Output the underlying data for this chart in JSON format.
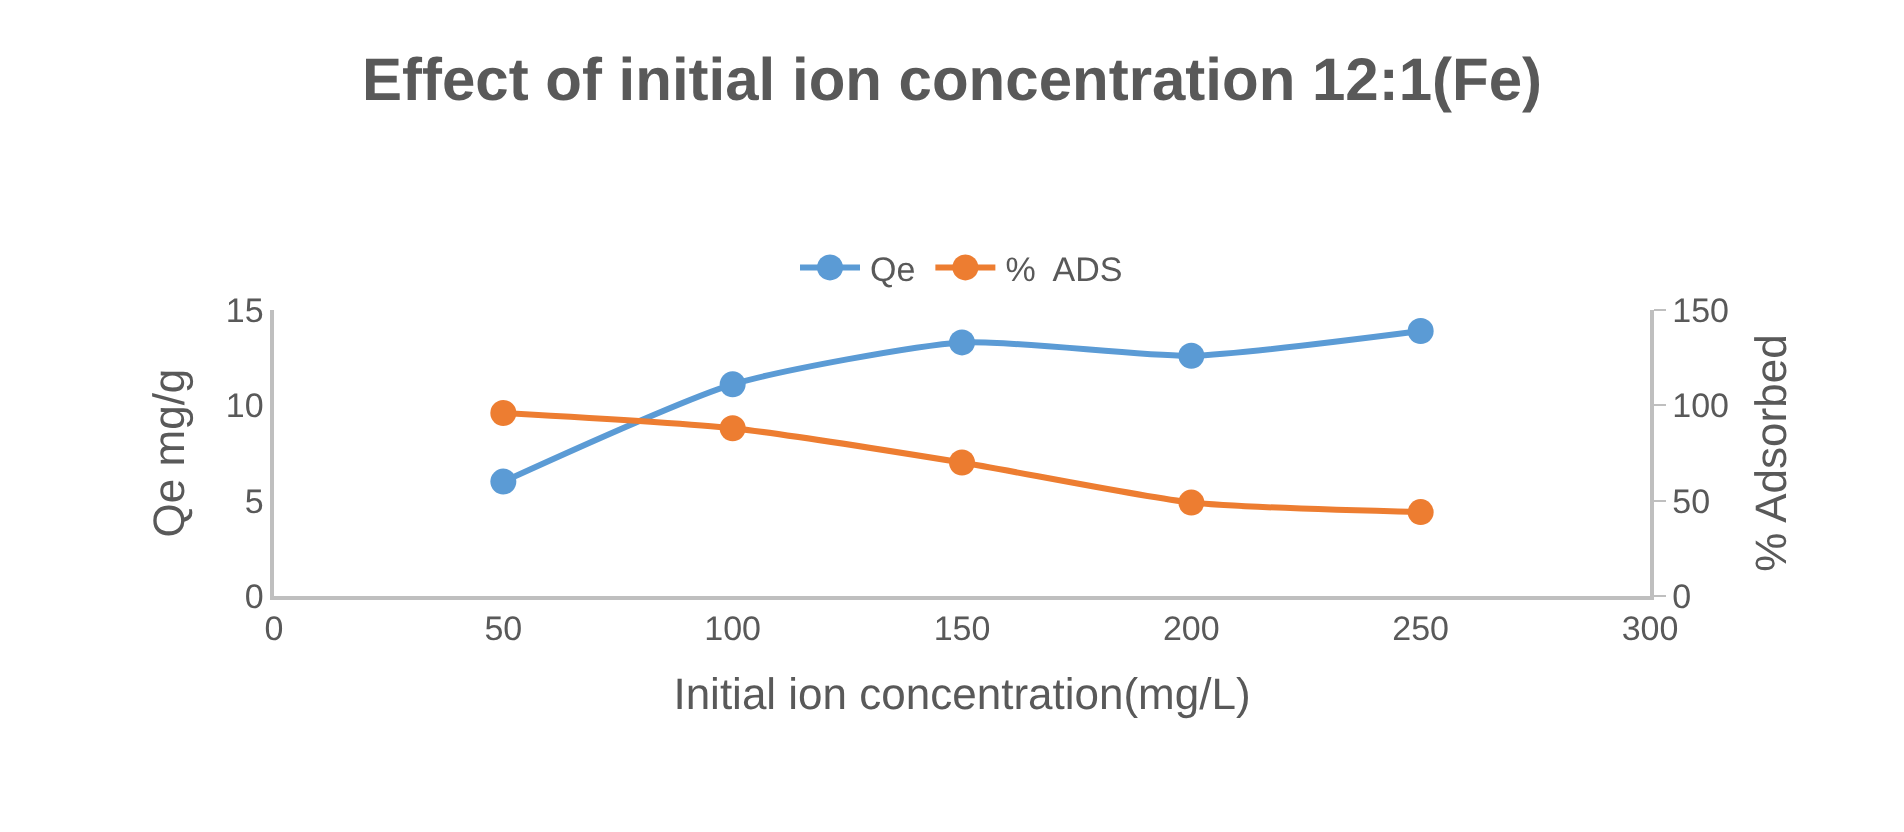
{
  "chart_data": {
    "type": "line",
    "title": "Effect of initial ion concentration 12:1(Fe)",
    "xlabel": "Initial ion concentration(mg/L)",
    "ylabel": "Qe mg/g",
    "y2label": "% Adsorbed",
    "x": [
      50,
      100,
      150,
      200,
      250
    ],
    "series": [
      {
        "name": "Qe",
        "color": "#5b9bd5",
        "values": [
          6.0,
          11.1,
          13.3,
          12.6,
          13.9
        ]
      },
      {
        "name": "%  ADS",
        "color": "#ed7d31",
        "axis": "y2",
        "values": [
          96,
          88,
          70,
          49,
          44
        ]
      }
    ],
    "xlim": [
      0,
      300
    ],
    "xticks": [
      0,
      50,
      100,
      150,
      200,
      250,
      300
    ],
    "ylim": [
      0,
      15
    ],
    "yticks": [
      0,
      5,
      10,
      15
    ],
    "y2lim": [
      0,
      150
    ],
    "y2ticks": [
      0,
      50,
      100,
      150
    ],
    "grid": false,
    "legend": "top",
    "marker": "circle",
    "line_style": "solid"
  }
}
